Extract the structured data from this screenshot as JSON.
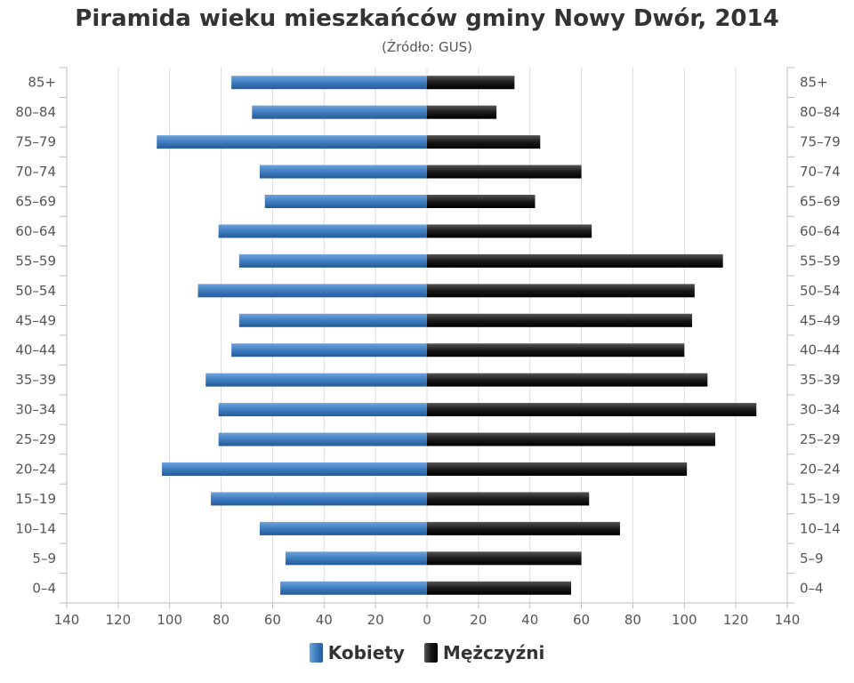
{
  "chart_data": {
    "type": "bar",
    "title": "Piramida wieku mieszkańców gminy Nowy Dwór, 2014",
    "subtitle": "(Źródło: GUS)",
    "categories": [
      "85+",
      "80–84",
      "75–79",
      "70–74",
      "65–69",
      "60–64",
      "55–59",
      "50–54",
      "45–49",
      "40–44",
      "35–39",
      "30–34",
      "25–29",
      "20–24",
      "15–19",
      "10–14",
      "5–9",
      "0–4"
    ],
    "series": [
      {
        "name": "Kobiety",
        "color": "#3f7dbf",
        "values": [
          76,
          68,
          105,
          65,
          63,
          81,
          73,
          89,
          73,
          76,
          86,
          81,
          81,
          103,
          84,
          65,
          55,
          57
        ]
      },
      {
        "name": "Mężczyźni",
        "color": "#1a1a1a",
        "values": [
          34,
          27,
          44,
          60,
          42,
          64,
          115,
          104,
          103,
          100,
          109,
          128,
          112,
          101,
          63,
          75,
          60,
          56
        ]
      }
    ],
    "x_ticks": [
      "140",
      "120",
      "100",
      "80",
      "60",
      "40",
      "20",
      "0",
      "20",
      "40",
      "60",
      "80",
      "100",
      "120",
      "140"
    ],
    "xlim": [
      -140,
      140
    ],
    "grid": true,
    "legend_position": "bottom"
  }
}
